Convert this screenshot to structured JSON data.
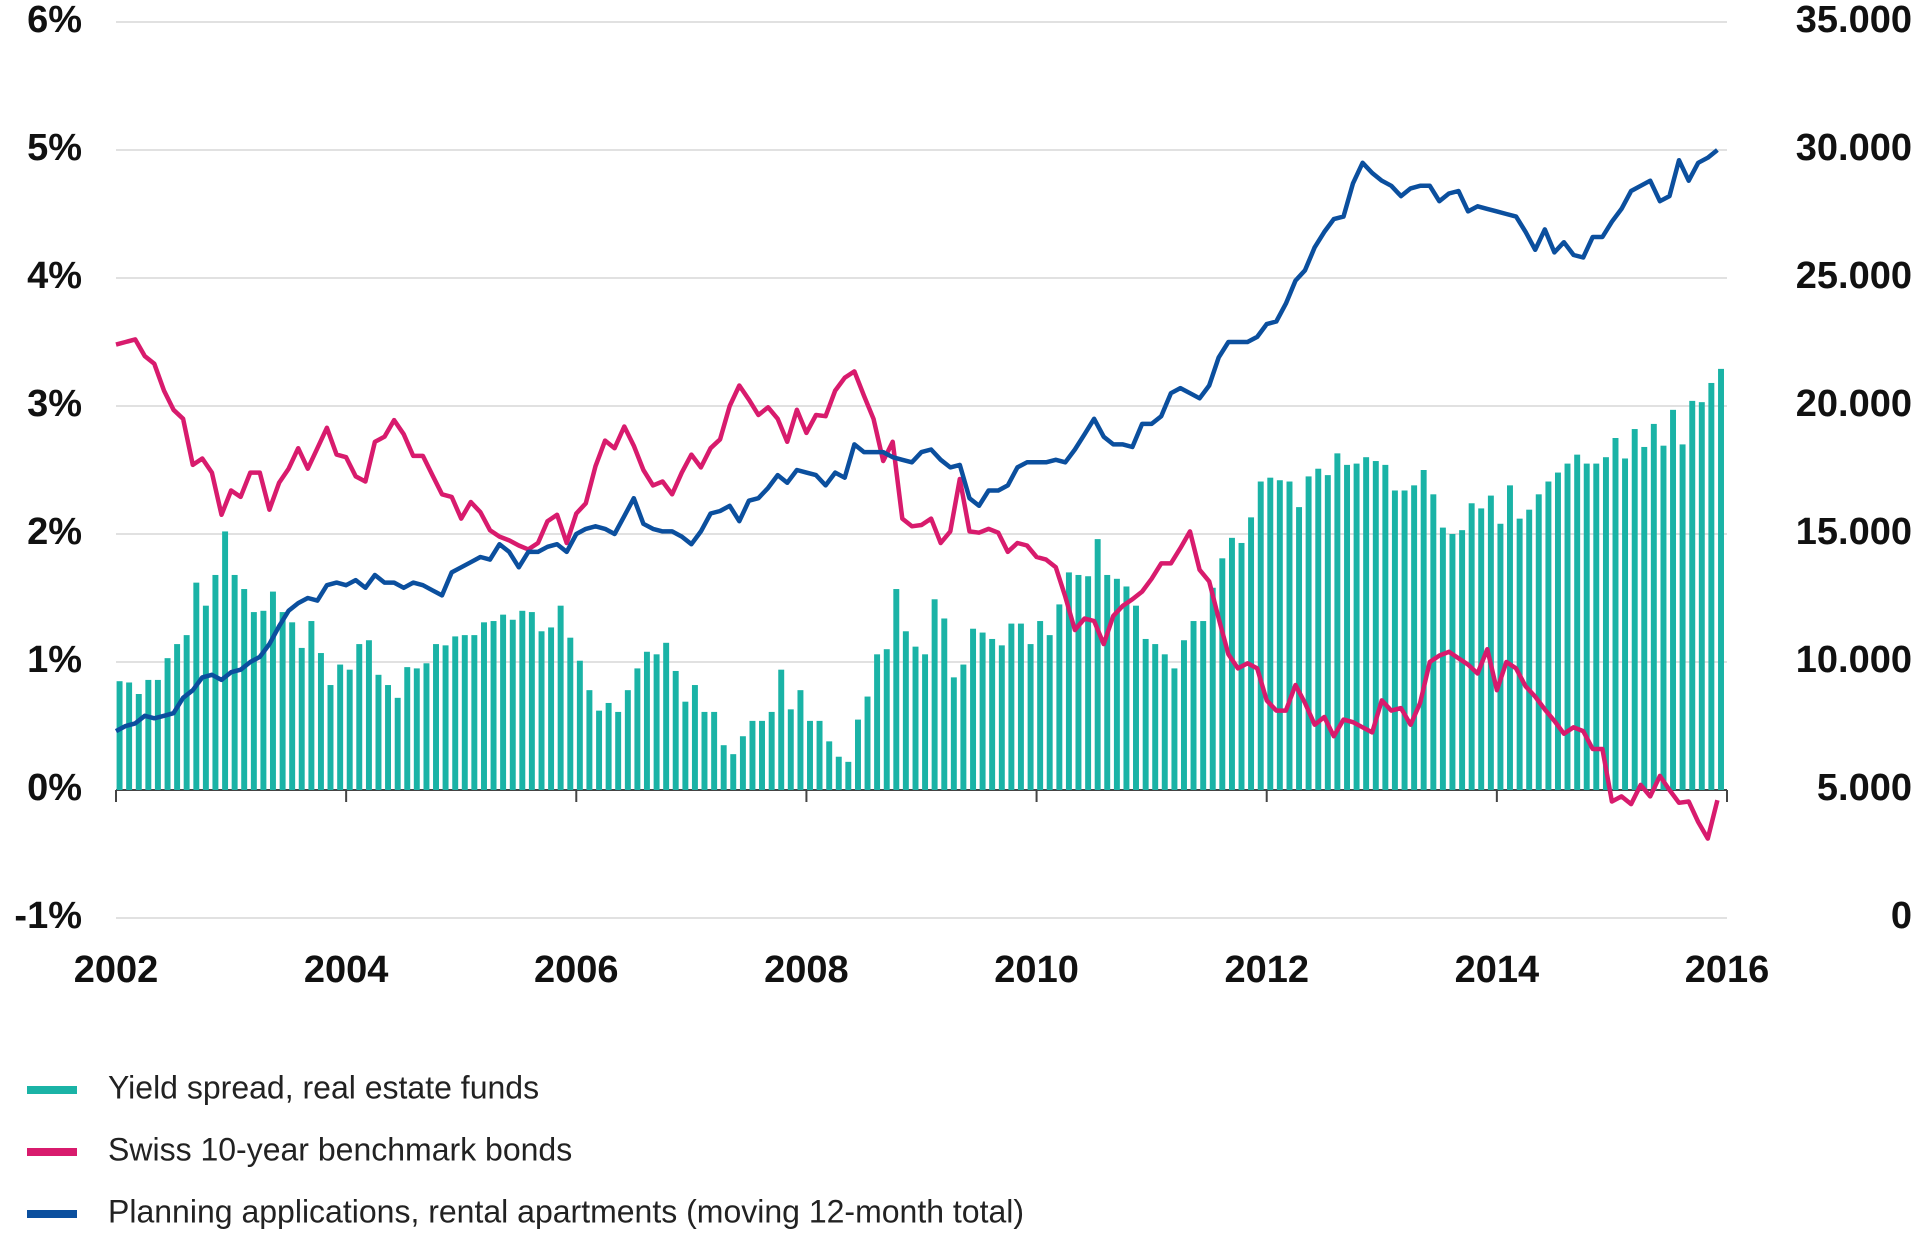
{
  "chart_data": {
    "type": "bar-line",
    "x": [
      2002,
      2002.083,
      2002.167,
      2002.25,
      2002.333,
      2002.417,
      2002.5,
      2002.583,
      2002.667,
      2002.75,
      2002.833,
      2002.917,
      2003,
      2003.083,
      2003.167,
      2003.25,
      2003.333,
      2003.417,
      2003.5,
      2003.583,
      2003.667,
      2003.75,
      2003.833,
      2003.917,
      2004,
      2004.083,
      2004.167,
      2004.25,
      2004.333,
      2004.417,
      2004.5,
      2004.583,
      2004.667,
      2004.75,
      2004.833,
      2004.917,
      2005,
      2005.083,
      2005.167,
      2005.25,
      2005.333,
      2005.417,
      2005.5,
      2005.583,
      2005.667,
      2005.75,
      2005.833,
      2005.917,
      2006,
      2006.083,
      2006.167,
      2006.25,
      2006.333,
      2006.417,
      2006.5,
      2006.583,
      2006.667,
      2006.75,
      2006.833,
      2006.917,
      2007,
      2007.083,
      2007.167,
      2007.25,
      2007.333,
      2007.417,
      2007.5,
      2007.583,
      2007.667,
      2007.75,
      2007.833,
      2007.917,
      2008,
      2008.083,
      2008.167,
      2008.25,
      2008.333,
      2008.417,
      2008.5,
      2008.583,
      2008.667,
      2008.75,
      2008.833,
      2008.917,
      2009,
      2009.083,
      2009.167,
      2009.25,
      2009.333,
      2009.417,
      2009.5,
      2009.583,
      2009.667,
      2009.75,
      2009.833,
      2009.917,
      2010,
      2010.083,
      2010.167,
      2010.25,
      2010.333,
      2010.417,
      2010.5,
      2010.583,
      2010.667,
      2010.75,
      2010.833,
      2010.917,
      2011,
      2011.083,
      2011.167,
      2011.25,
      2011.333,
      2011.417,
      2011.5,
      2011.583,
      2011.667,
      2011.75,
      2011.833,
      2011.917,
      2012,
      2012.083,
      2012.167,
      2012.25,
      2012.333,
      2012.417,
      2012.5,
      2012.583,
      2012.667,
      2012.75,
      2012.833,
      2012.917,
      2013,
      2013.083,
      2013.167,
      2013.25,
      2013.333,
      2013.417,
      2013.5,
      2013.583,
      2013.667,
      2013.75,
      2013.833,
      2013.917,
      2014,
      2014.083,
      2014.167,
      2014.25,
      2014.333,
      2014.417,
      2014.5,
      2014.583,
      2014.667,
      2014.75,
      2014.833,
      2014.917,
      2015,
      2015.083,
      2015.167,
      2015.25,
      2015.333,
      2015.417,
      2015.5,
      2015.583,
      2015.667,
      2015.75,
      2015.833,
      2015.917
    ],
    "series": [
      {
        "name": "Yield spread, real estate funds",
        "kind": "bar",
        "color": "#1ab3a6",
        "axis": "y",
        "values": [
          0.85,
          0.84,
          0.75,
          0.86,
          0.86,
          1.03,
          1.14,
          1.21,
          1.62,
          1.44,
          1.68,
          2.02,
          1.68,
          1.57,
          1.39,
          1.4,
          1.55,
          1.39,
          1.31,
          1.11,
          1.32,
          1.07,
          0.82,
          0.98,
          0.94,
          1.14,
          1.17,
          0.9,
          0.82,
          0.72,
          0.96,
          0.95,
          0.99,
          1.14,
          1.13,
          1.2,
          1.21,
          1.21,
          1.31,
          1.32,
          1.37,
          1.33,
          1.4,
          1.39,
          1.24,
          1.27,
          1.44,
          1.19,
          1.01,
          0.78,
          0.62,
          0.68,
          0.61,
          0.78,
          0.95,
          1.08,
          1.06,
          1.15,
          0.93,
          0.69,
          0.82,
          0.61,
          0.61,
          0.35,
          0.28,
          0.42,
          0.54,
          0.54,
          0.61,
          0.94,
          0.63,
          0.78,
          0.54,
          0.54,
          0.38,
          0.26,
          0.22,
          0.55,
          0.73,
          1.06,
          1.1,
          1.57,
          1.24,
          1.12,
          1.06,
          1.49,
          1.34,
          0.88,
          0.98,
          1.26,
          1.23,
          1.18,
          1.13,
          1.3,
          1.3,
          1.14,
          1.32,
          1.21,
          1.45,
          1.7,
          1.68,
          1.67,
          1.96,
          1.68,
          1.65,
          1.59,
          1.44,
          1.18,
          1.14,
          1.06,
          0.95,
          1.17,
          1.32,
          1.32,
          1.58,
          1.81,
          1.97,
          1.93,
          2.13,
          2.41,
          2.44,
          2.42,
          2.41,
          2.21,
          2.45,
          2.51,
          2.46,
          2.63,
          2.54,
          2.55,
          2.6,
          2.57,
          2.54,
          2.34,
          2.34,
          2.38,
          2.5,
          2.31,
          2.05,
          2.0,
          2.03,
          2.24,
          2.2,
          2.3,
          2.08,
          2.38,
          2.12,
          2.19,
          2.31,
          2.41,
          2.48,
          2.55,
          2.62,
          2.55,
          2.55,
          2.6,
          2.75,
          2.59,
          2.82,
          2.68,
          2.86,
          2.69,
          2.97,
          2.7,
          3.04,
          3.03,
          3.18,
          3.29
        ]
      },
      {
        "name": "Swiss 10-year benchmark bonds",
        "kind": "line",
        "color": "#d81b6d",
        "axis": "y",
        "values": [
          3.48,
          3.5,
          3.52,
          3.39,
          3.33,
          3.12,
          2.97,
          2.9,
          2.54,
          2.59,
          2.48,
          2.15,
          2.34,
          2.29,
          2.48,
          2.48,
          2.19,
          2.4,
          2.51,
          2.67,
          2.51,
          2.67,
          2.83,
          2.62,
          2.6,
          2.45,
          2.41,
          2.72,
          2.76,
          2.89,
          2.78,
          2.61,
          2.61,
          2.46,
          2.31,
          2.29,
          2.12,
          2.25,
          2.17,
          2.03,
          1.98,
          1.95,
          1.91,
          1.88,
          1.93,
          2.1,
          2.15,
          1.93,
          2.16,
          2.24,
          2.53,
          2.73,
          2.67,
          2.84,
          2.69,
          2.5,
          2.38,
          2.41,
          2.31,
          2.48,
          2.62,
          2.52,
          2.67,
          2.74,
          3.0,
          3.16,
          3.05,
          2.93,
          2.99,
          2.9,
          2.72,
          2.97,
          2.79,
          2.93,
          2.92,
          3.12,
          3.22,
          3.27,
          3.08,
          2.9,
          2.57,
          2.72,
          2.12,
          2.06,
          2.07,
          2.12,
          1.93,
          2.02,
          2.43,
          2.02,
          2.01,
          2.04,
          2.01,
          1.86,
          1.93,
          1.91,
          1.82,
          1.8,
          1.74,
          1.51,
          1.25,
          1.34,
          1.32,
          1.14,
          1.36,
          1.44,
          1.49,
          1.55,
          1.65,
          1.77,
          1.77,
          1.89,
          2.02,
          1.72,
          1.63,
          1.34,
          1.06,
          0.95,
          0.99,
          0.95,
          0.7,
          0.62,
          0.62,
          0.82,
          0.68,
          0.51,
          0.57,
          0.42,
          0.55,
          0.53,
          0.49,
          0.45,
          0.7,
          0.62,
          0.64,
          0.51,
          0.68,
          1.0,
          1.05,
          1.08,
          1.03,
          0.98,
          0.91,
          1.1,
          0.78,
          1.0,
          0.95,
          0.81,
          0.73,
          0.63,
          0.54,
          0.44,
          0.49,
          0.46,
          0.32,
          0.32,
          -0.09,
          -0.05,
          -0.11,
          0.04,
          -0.05,
          0.11,
          0.0,
          -0.1,
          -0.09,
          -0.25,
          -0.38,
          -0.08
        ]
      },
      {
        "name": "Planning applications, rental apartments (moving 12-month total)",
        "kind": "line",
        "color": "#0b4f9e",
        "axis": "y2",
        "values": [
          7300,
          7500,
          7600,
          7900,
          7800,
          7900,
          8000,
          8600,
          8900,
          9400,
          9500,
          9300,
          9600,
          9700,
          10000,
          10200,
          10700,
          11400,
          12000,
          12300,
          12500,
          12400,
          13000,
          13100,
          13000,
          13200,
          12900,
          13400,
          13100,
          13100,
          12900,
          13100,
          13000,
          12800,
          12600,
          13500,
          13700,
          13900,
          14100,
          14000,
          14600,
          14300,
          13700,
          14300,
          14300,
          14500,
          14600,
          14300,
          15000,
          15200,
          15300,
          15200,
          15000,
          15700,
          16400,
          15400,
          15200,
          15100,
          15100,
          14900,
          14600,
          15100,
          15800,
          15900,
          16100,
          15500,
          16300,
          16400,
          16800,
          17300,
          17000,
          17500,
          17400,
          17300,
          16900,
          17400,
          17200,
          18500,
          18200,
          18200,
          18200,
          18000,
          17900,
          17800,
          18200,
          18300,
          17900,
          17600,
          17700,
          16400,
          16100,
          16700,
          16700,
          16900,
          17600,
          17800,
          17800,
          17800,
          17900,
          17800,
          18300,
          18900,
          19500,
          18800,
          18500,
          18500,
          18400,
          19300,
          19300,
          19600,
          20500,
          20700,
          20500,
          20300,
          20800,
          21900,
          22500,
          22500,
          22500,
          22700,
          23200,
          23300,
          24000,
          24900,
          25300,
          26200,
          26800,
          27300,
          27400,
          28700,
          29500,
          29100,
          28800,
          28600,
          28200,
          28500,
          28600,
          28600,
          28000,
          28300,
          28400,
          27600,
          27800,
          27700,
          27600,
          27500,
          27400,
          26800,
          26100,
          26900,
          26000,
          26400,
          25900,
          25800,
          26600,
          26600,
          27200,
          27700,
          28400,
          28600,
          28800,
          28000,
          28200,
          29600,
          28800,
          29500,
          29700,
          30000
        ]
      }
    ],
    "xlim": [
      2002,
      2016
    ],
    "xticks": [
      2002,
      2004,
      2006,
      2008,
      2010,
      2012,
      2014,
      2016
    ],
    "ylim": [
      -1,
      6
    ],
    "yticks": [
      {
        "value": -1,
        "label": "-1%"
      },
      {
        "value": 0,
        "label": "0%"
      },
      {
        "value": 1,
        "label": "1%"
      },
      {
        "value": 2,
        "label": "2%"
      },
      {
        "value": 3,
        "label": "3%"
      },
      {
        "value": 4,
        "label": "4%"
      },
      {
        "value": 5,
        "label": "5%"
      },
      {
        "value": 6,
        "label": "6%"
      }
    ],
    "y2lim": [
      0,
      35000
    ],
    "y2ticks": [
      0,
      {
        "value": 5000,
        "label": "5.000"
      },
      {
        "value": 10000,
        "label": "10.000"
      },
      {
        "value": 15000,
        "label": "15.000"
      },
      {
        "value": 20000,
        "label": "20.000"
      },
      {
        "value": 25000,
        "label": "25.000"
      },
      {
        "value": 30000,
        "label": "30.000"
      },
      {
        "value": 35000,
        "label": "35.000"
      }
    ],
    "grid": true,
    "legend": "bottom-left"
  }
}
